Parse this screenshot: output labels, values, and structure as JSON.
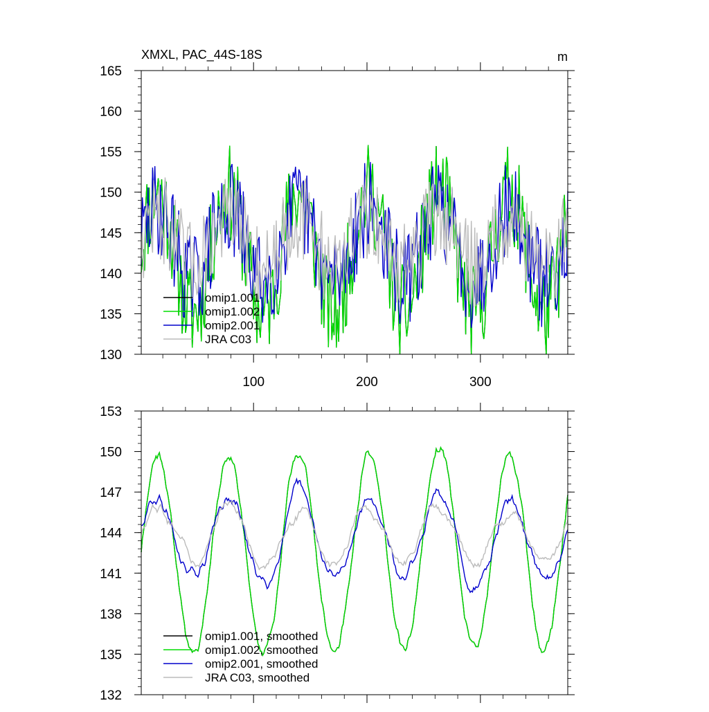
{
  "chart_data": [
    {
      "type": "line",
      "title": "XMXL, PAC_44S-18S",
      "units": "m",
      "xlim": [
        1,
        377
      ],
      "ylim": [
        130,
        165
      ],
      "x_ticks": [
        100,
        200,
        300
      ],
      "y_ticks": [
        130,
        135,
        140,
        145,
        150,
        155,
        160,
        165
      ],
      "y_tick_labels": [
        "130",
        "135",
        "140",
        "145",
        "150",
        "155",
        "160",
        "165"
      ],
      "legend_position": "lower-left",
      "series": [
        {
          "name": "omip1.001",
          "color": "#000000",
          "base": 142.5,
          "amp": 7.5,
          "noise": 5.5,
          "seed": 11
        },
        {
          "name": "omip1.002",
          "color": "#00dd00",
          "base": 142.5,
          "amp": 7.5,
          "noise": 5.5,
          "seed": 11
        },
        {
          "name": "omip2.001",
          "color": "#0000cc",
          "base": 143.5,
          "amp": 4.5,
          "noise": 5.5,
          "seed": 29
        },
        {
          "name": "JRA C03",
          "color": "#bbbbbb",
          "base": 144.0,
          "amp": 3.0,
          "noise": 5.0,
          "seed": 47
        }
      ]
    },
    {
      "type": "line",
      "title": "",
      "xlim": [
        1,
        377
      ],
      "ylim": [
        132,
        153
      ],
      "x_ticks": [
        100,
        200,
        300
      ],
      "y_ticks": [
        132,
        135,
        138,
        141,
        144,
        147,
        150,
        153
      ],
      "y_tick_labels": [
        "132",
        "135",
        "138",
        "141",
        "144",
        "147",
        "150",
        "153"
      ],
      "legend_position": "lower-left",
      "series": [
        {
          "name": "omip1.001, smoothed",
          "color": "#000000",
          "base": 142.5,
          "amp": 7.5,
          "noise": 0.9,
          "seed": 11
        },
        {
          "name": "omip1.002, smoothed",
          "color": "#00dd00",
          "base": 142.5,
          "amp": 7.5,
          "noise": 0.9,
          "seed": 11
        },
        {
          "name": "omip2.001, smoothed",
          "color": "#0000cc",
          "base": 143.5,
          "amp": 3.0,
          "noise": 0.9,
          "seed": 29
        },
        {
          "name": "JRA C03, smoothed",
          "color": "#bbbbbb",
          "base": 143.8,
          "amp": 2.0,
          "noise": 0.8,
          "seed": 47
        }
      ]
    }
  ]
}
